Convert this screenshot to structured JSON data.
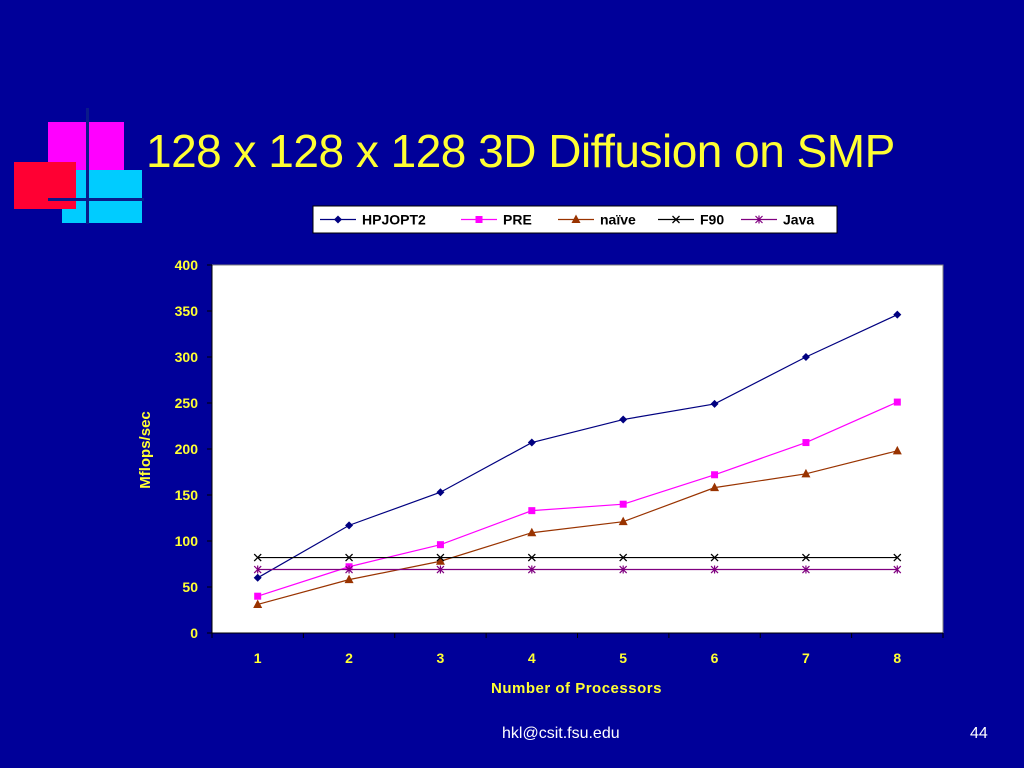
{
  "slide": {
    "title": "128 x 128 x 128 3D Diffusion on SMP",
    "footer_email": "hkl@csit.fsu.edu",
    "page_number": "44"
  },
  "colors": {
    "background": "#000099",
    "title": "#ffff33",
    "axis_text": "#ffff33",
    "plot_bg": "#ffffff"
  },
  "chart_data": {
    "type": "line",
    "title": "",
    "xlabel": "Number of Processors",
    "ylabel": "Mflops/sec",
    "x": [
      1,
      2,
      3,
      4,
      5,
      6,
      7,
      8
    ],
    "ylim": [
      0,
      400
    ],
    "yticks": [
      0,
      50,
      100,
      150,
      200,
      250,
      300,
      350,
      400
    ],
    "grid": false,
    "legend_position": "top",
    "series": [
      {
        "name": "HPJOPT2",
        "color": "#000080",
        "marker": "diamond",
        "values": [
          60,
          117,
          153,
          207,
          232,
          249,
          300,
          346
        ]
      },
      {
        "name": "PRE",
        "color": "#ff00ff",
        "marker": "square",
        "values": [
          40,
          72,
          96,
          133,
          140,
          172,
          207,
          251
        ]
      },
      {
        "name": "naïve",
        "color": "#993300",
        "marker": "triangle",
        "values": [
          31,
          58,
          78,
          109,
          121,
          158,
          173,
          198
        ]
      },
      {
        "name": "F90",
        "color": "#000000",
        "marker": "x",
        "values": [
          82,
          82,
          82,
          82,
          82,
          82,
          82,
          82
        ]
      },
      {
        "name": "Java",
        "color": "#800080",
        "marker": "star",
        "values": [
          69,
          69,
          69,
          69,
          69,
          69,
          69,
          69
        ]
      }
    ]
  }
}
